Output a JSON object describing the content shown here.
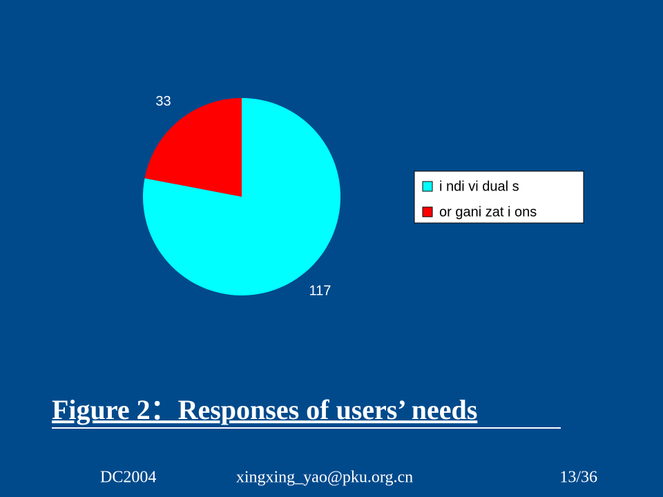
{
  "chart_data": {
    "type": "pie",
    "title": "Figure 2：Responses of users’ needs",
    "categories": [
      "i ndi vi dual s",
      "or gani zat i ons"
    ],
    "values": [
      117,
      33
    ],
    "colors": [
      "#00ffff",
      "#ff0000"
    ],
    "legend": "right"
  },
  "footer": {
    "left": "DC2004",
    "center": "xingxing_yao@pku.org.cn",
    "right": "13/36"
  }
}
